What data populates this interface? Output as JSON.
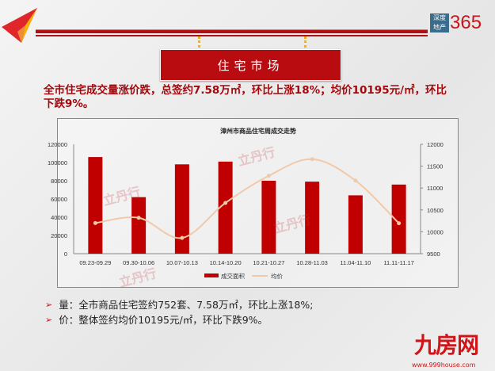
{
  "brand": {
    "box_top": "深度",
    "box_bottom": "地产",
    "number": "365"
  },
  "banner": {
    "title": "住宅市场"
  },
  "headline": "全市住宅成交量涨价跌，总签约7.58万㎡，环比上涨18%；均价10195元/㎡，环比下跌9%。",
  "watermark": "立丹行",
  "chart_data": {
    "type": "bar",
    "title": "漳州市商品住宅周成交走势",
    "categories": [
      "09.23-09.29",
      "09.30-10.06",
      "10.07-10.13",
      "10.14-10.20",
      "10.21-10.27",
      "10.28-11.03",
      "11.04-11.10",
      "11.11-11.17"
    ],
    "series": [
      {
        "name": "成交面积",
        "type": "bar",
        "axis": "left",
        "color": "#c00000",
        "values": [
          106000,
          62000,
          98000,
          101000,
          80000,
          79000,
          64000,
          75800
        ]
      },
      {
        "name": "均价",
        "type": "line",
        "axis": "right",
        "color": "#f2c9a8",
        "values": [
          10200,
          10320,
          9860,
          10660,
          11280,
          11660,
          11170,
          10195
        ]
      }
    ],
    "ylim_left": [
      0,
      120000
    ],
    "yticks_left": [
      "0",
      "20000",
      "40000",
      "60000",
      "80000",
      "100000",
      "120000"
    ],
    "ylim_right": [
      9500,
      12000
    ],
    "yticks_right": [
      "9500",
      "10000",
      "10500",
      "11000",
      "11500",
      "12000"
    ],
    "legend": "bottom"
  },
  "bullets": [
    {
      "text": "量：全市商品住宅签约752套、7.58万㎡，环比上涨18%;"
    },
    {
      "text": "价：整体签约均价10195元/㎡，环比下跌9%。"
    }
  ],
  "footer": {
    "logo": "九房网",
    "url": "www.999house.com"
  }
}
